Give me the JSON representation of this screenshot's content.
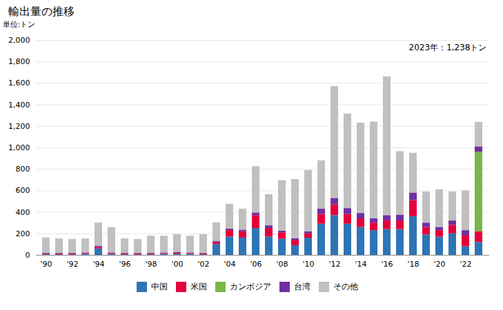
{
  "chart_data": {
    "type": "bar",
    "stacked": true,
    "title": "輸出量の推移",
    "ylabel": "単位:トン",
    "annotation": "2023年：1,238トン",
    "categories": [
      "'90",
      null,
      "'92",
      null,
      "'94",
      null,
      "'96",
      null,
      "'98",
      null,
      "'00",
      null,
      "'02",
      null,
      "'04",
      null,
      "'06",
      null,
      "'08",
      null,
      "'10",
      null,
      "'12",
      null,
      "'14",
      null,
      "'16",
      null,
      "'18",
      null,
      "'20",
      null,
      "'22",
      null
    ],
    "series": [
      {
        "name": "中国",
        "color": "#2E75B6",
        "values": [
          5,
          5,
          5,
          10,
          60,
          10,
          5,
          5,
          5,
          10,
          10,
          10,
          5,
          100,
          170,
          160,
          250,
          170,
          150,
          90,
          160,
          290,
          370,
          290,
          260,
          230,
          240,
          240,
          360,
          190,
          170,
          200,
          80,
          120
        ]
      },
      {
        "name": "米国",
        "color": "#E4003A",
        "values": [
          8,
          8,
          8,
          8,
          15,
          8,
          8,
          8,
          8,
          8,
          10,
          8,
          8,
          20,
          60,
          60,
          120,
          80,
          60,
          50,
          40,
          90,
          100,
          90,
          80,
          70,
          80,
          80,
          150,
          70,
          60,
          80,
          100,
          100
        ]
      },
      {
        "name": "カンボジア",
        "color": "#7AB648",
        "values": [
          0,
          0,
          0,
          0,
          0,
          0,
          0,
          0,
          0,
          0,
          0,
          0,
          0,
          0,
          0,
          0,
          0,
          0,
          0,
          0,
          0,
          0,
          0,
          0,
          0,
          0,
          0,
          0,
          0,
          0,
          0,
          0,
          0,
          740
        ]
      },
      {
        "name": "台湾",
        "color": "#7030A0",
        "values": [
          5,
          5,
          5,
          5,
          10,
          5,
          5,
          5,
          5,
          5,
          8,
          5,
          5,
          8,
          15,
          15,
          25,
          25,
          15,
          15,
          20,
          50,
          60,
          55,
          50,
          40,
          50,
          55,
          70,
          40,
          30,
          40,
          50,
          50
        ]
      },
      {
        "name": "その他",
        "color": "#C0C0C0",
        "values": [
          145,
          135,
          130,
          130,
          215,
          235,
          135,
          130,
          160,
          155,
          165,
          155,
          175,
          175,
          230,
          195,
          430,
          290,
          470,
          550,
          570,
          450,
          1040,
          880,
          840,
          900,
          1290,
          590,
          370,
          290,
          350,
          270,
          370,
          228
        ]
      }
    ],
    "ylim": [
      0,
      2000
    ],
    "yticks": [
      0,
      200,
      400,
      600,
      800,
      {
        "value": 1000,
        "label": "1,000"
      },
      {
        "value": 1200,
        "label": "1,200"
      },
      {
        "value": 1400,
        "label": "1,400"
      },
      {
        "value": 1600,
        "label": "1,600"
      },
      {
        "value": 1800,
        "label": "1,800"
      },
      {
        "value": 2000,
        "label": "2,000"
      }
    ],
    "grid": true,
    "legend": "bottom"
  }
}
